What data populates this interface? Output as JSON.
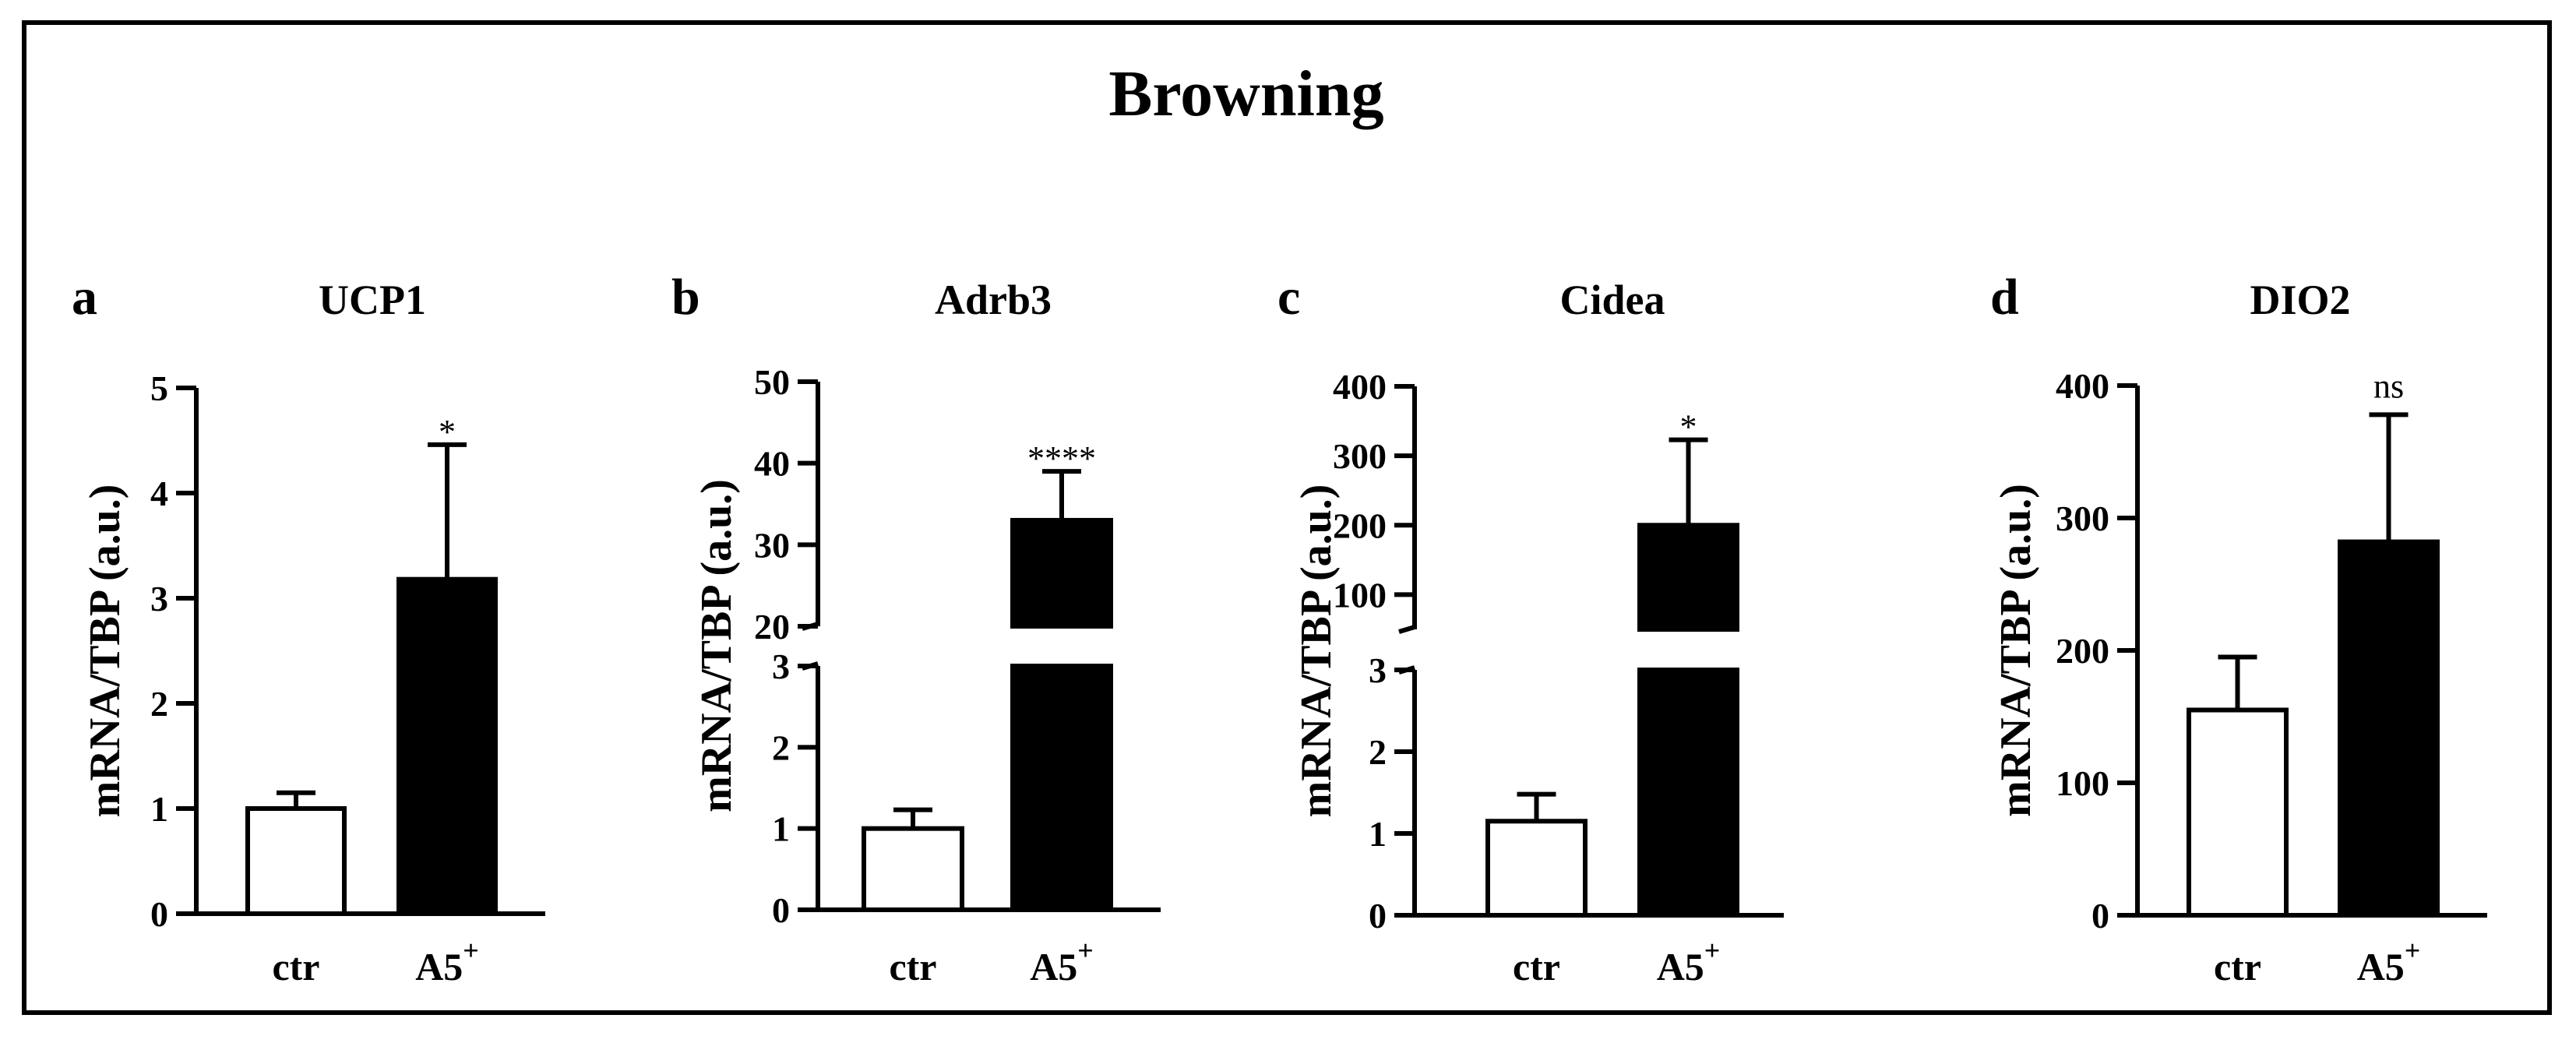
{
  "figure": {
    "title": "Browning"
  },
  "chart_data": [
    {
      "type": "bar",
      "panel": "a",
      "title": "UCP1",
      "ylabel": "mRNA/TBP (a.u.)",
      "categories": [
        {
          "label": "ctr",
          "sup": ""
        },
        {
          "label": "A5",
          "sup": "+"
        }
      ],
      "values": [
        1.0,
        3.18
      ],
      "errors": [
        0.15,
        1.28
      ],
      "fills": [
        "#ffffff",
        "#000000"
      ],
      "significance": "*",
      "segments": [
        {
          "range": [
            0,
            5
          ],
          "ticks": [
            0,
            1,
            2,
            3,
            4,
            5
          ]
        }
      ]
    },
    {
      "type": "bar",
      "panel": "b",
      "title": "Adrb3",
      "ylabel": "mRNA/TBP (a.u.)",
      "categories": [
        {
          "label": "ctr",
          "sup": ""
        },
        {
          "label": "A5",
          "sup": "+"
        }
      ],
      "values": [
        1.0,
        33
      ],
      "errors": [
        0.23,
        6
      ],
      "fills": [
        "#ffffff",
        "#000000"
      ],
      "significance": "****",
      "segments": [
        {
          "range": [
            0,
            3
          ],
          "ticks": [
            0,
            1,
            2,
            3
          ]
        },
        {
          "range": [
            20,
            50
          ],
          "ticks": [
            20,
            30,
            40,
            50
          ]
        }
      ]
    },
    {
      "type": "bar",
      "panel": "c",
      "title": "Cidea",
      "ylabel": "mRNA/TBP (a.u.)",
      "categories": [
        {
          "label": "ctr",
          "sup": ""
        },
        {
          "label": "A5",
          "sup": "+"
        }
      ],
      "values": [
        1.15,
        200
      ],
      "errors": [
        0.33,
        123
      ],
      "fills": [
        "#ffffff",
        "#000000"
      ],
      "significance": "*",
      "segments": [
        {
          "range": [
            0,
            3
          ],
          "ticks": [
            0,
            1,
            2,
            3
          ]
        },
        {
          "range": [
            50,
            400
          ],
          "ticks": [
            100,
            200,
            300,
            400
          ]
        }
      ]
    },
    {
      "type": "bar",
      "panel": "d",
      "title": "DIO2",
      "ylabel": "mRNA/TBP (a.u.)",
      "categories": [
        {
          "label": "ctr",
          "sup": ""
        },
        {
          "label": "A5",
          "sup": "+"
        }
      ],
      "values": [
        155,
        282
      ],
      "errors": [
        40,
        96
      ],
      "fills": [
        "#ffffff",
        "#000000"
      ],
      "significance": "ns",
      "segments": [
        {
          "range": [
            0,
            400
          ],
          "ticks": [
            0,
            100,
            200,
            300,
            400
          ]
        }
      ]
    }
  ]
}
